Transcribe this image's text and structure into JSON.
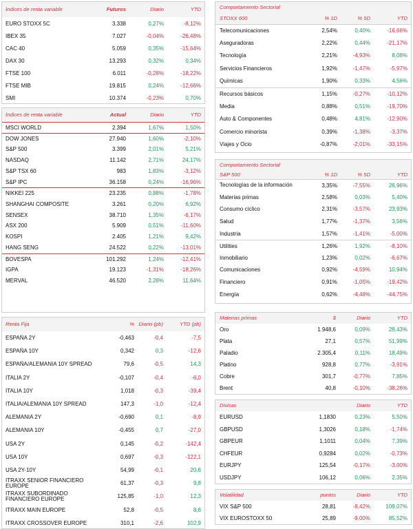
{
  "colors": {
    "accent": "#d0303f",
    "positive": "#1a9a5a",
    "negative": "#d0303f"
  },
  "futuros": {
    "headers": [
      "Índices de renta variable",
      "Futuros",
      "Diario",
      "YTD"
    ],
    "rows": [
      [
        "EURO STOXX 5C",
        "3.338",
        "0,27%",
        "-8,12%"
      ],
      [
        "IBEX 35",
        "7.027",
        "-0,04%",
        "-26,48%"
      ],
      [
        "CAC 40",
        "5.059",
        "0,35%",
        "-15,64%"
      ],
      [
        "DAX 30",
        "13.293",
        "0,32%",
        "0,34%"
      ],
      [
        "FTSE 100",
        "6.011",
        "-0,28%",
        "-18,22%"
      ],
      [
        "FTSE MIB",
        "19.815",
        "0,24%",
        "-12,66%"
      ],
      [
        "SMI",
        "10.374",
        "-0,23%",
        "0,70%"
      ]
    ]
  },
  "actual": {
    "headers": [
      "Índices de renta variable",
      "Actual",
      "Diario",
      "YTD"
    ],
    "groups": [
      [
        [
          "MSCI WORLD",
          "2.394",
          "1,67%",
          "1,50%"
        ]
      ],
      [
        [
          "DOW JONES",
          "27.940",
          "1,60%",
          "-2,10%"
        ],
        [
          "S&P 500",
          "3.399",
          "2,01%",
          "5,21%"
        ],
        [
          "NASDAQ",
          "11.142",
          "2,71%",
          "24,17%"
        ],
        [
          "S&P TSX 60",
          "983",
          "1,83%",
          "-3,12%"
        ],
        [
          "S&P IPC",
          "36.158",
          "0,24%",
          "-16,96%"
        ]
      ],
      [
        [
          "NIKKEI 225",
          "23.235",
          "0,88%",
          "-1,78%"
        ],
        [
          "SHANGHAI COMPOSITE",
          "3.261",
          "0,20%",
          "6,92%"
        ],
        [
          "SENSEX",
          "38.710",
          "1,35%",
          "-6,17%"
        ],
        [
          "ASX 200",
          "5.909",
          "0,51%",
          "-11,60%"
        ],
        [
          "KOSPI",
          "2.405",
          "1,21%",
          "9,42%"
        ],
        [
          "HANG SENG",
          "24.522",
          "0,22%",
          "-13,01%"
        ]
      ],
      [
        [
          "BOVESPA",
          "101.292",
          "1,24%",
          "-12,41%"
        ],
        [
          "IGPA",
          "19.123",
          "-1,31%",
          "-18,26%"
        ],
        [
          "MERVAL",
          "46.520",
          "2,28%",
          "11,64%"
        ]
      ]
    ]
  },
  "renta_fija": {
    "headers": [
      "Renta Fija",
      "%",
      "Diario (pb)",
      "YTD (pb)"
    ],
    "rows": [
      [
        "ESPAÑA 2Y",
        "-0,463",
        "-0,4",
        "-7,5"
      ],
      [
        "ESPAÑA 10Y",
        "0,342",
        "0,3",
        "-12,6"
      ],
      [
        "ESPAÑA/ALEMANIA 10Y SPREAD",
        "79,6",
        "-0,5",
        "14,3"
      ],
      [
        "ITALIA 2Y",
        "-0,107",
        "-0,4",
        "-6,0"
      ],
      [
        "ITALIA 10Y",
        "1,018",
        "-0,3",
        "-39,4"
      ],
      [
        "ITALIA/ALEMANIA 10Y SPREAD",
        "147,3",
        "-1,0",
        "-12,4"
      ],
      [
        "ALEMANIA 2Y",
        "-0,690",
        "0,1",
        "-8,9"
      ],
      [
        "ALEMANIA 10Y",
        "-0,455",
        "0,7",
        "-27,0"
      ],
      [
        "USA 2Y",
        "0,145",
        "-0,2",
        "-142,4"
      ],
      [
        "USA 10Y",
        "0,697",
        "-0,3",
        "-122,1"
      ],
      [
        "USA 2Y-10Y",
        "54,99",
        "-0,1",
        "20,6"
      ],
      [
        "ITRAXX SENIOR FINANCIERO EUROPE",
        "61,37",
        "-0,3",
        "9,8"
      ],
      [
        "ITRAXX SUBORDINADO FINANCIERO EUROPE",
        "125,85",
        "-1,0",
        "12,3"
      ],
      [
        "ITRAXX MAIN EUROPE",
        "52,8",
        "-0,5",
        "8,6"
      ],
      [
        "ITRAXX CROSSOVER EUROPE",
        "310,1",
        "-2,6",
        "102,9"
      ]
    ]
  },
  "sector_stoxx": {
    "title": "Comportamiento Sectorial",
    "headers": [
      "STOXX 600",
      "% 1D",
      "% 5D",
      "YTD"
    ],
    "groups": [
      [
        [
          "Telecomunicaciones",
          "2,54%",
          "0,40%",
          "-16,66%"
        ],
        [
          "Aseguradoras",
          "2,22%",
          "0,44%",
          "-21,17%"
        ],
        [
          "Tecnología",
          "2,21%",
          "-4,93%",
          "8,08%"
        ],
        [
          "Servicios Financieros",
          "1,92%",
          "-1,47%",
          "-5,97%"
        ],
        [
          "Químicas",
          "1,90%",
          "0,33%",
          "4,56%"
        ]
      ],
      [
        [
          "Recursos básicos",
          "1,15%",
          "-0,27%",
          "-10,12%"
        ],
        [
          "Media",
          "0,88%",
          "0,51%",
          "-19,70%"
        ],
        [
          "Auto & Componentes",
          "0,48%",
          "4,81%",
          "-12,90%"
        ],
        [
          "Comercio minorista",
          "0,39%",
          "-1,38%",
          "-3,37%"
        ],
        [
          "Viajes y Ocio",
          "-0,87%",
          "-2,01%",
          "-33,15%"
        ]
      ]
    ]
  },
  "sector_sp": {
    "title": "Comportamiento Sectorial",
    "headers": [
      "S&P 500",
      "% 1D",
      "% 5D",
      "YTD"
    ],
    "groups": [
      [
        [
          "Tecnologías de la información",
          "3,35%",
          "-7,55%",
          "26,96%"
        ],
        [
          "Materias primas",
          "2,58%",
          "0,03%",
          "5,40%"
        ],
        [
          "Consumo cíclico",
          "2,31%",
          "-3,57%",
          "23,93%"
        ],
        [
          "Salud",
          "1,77%",
          "-1,37%",
          "3,56%"
        ],
        [
          "Industria",
          "1,57%",
          "-1,41%",
          "-5,00%"
        ]
      ],
      [
        [
          "Utilities",
          "1,26%",
          "1,92%",
          "-8,10%"
        ],
        [
          "Inmobiliario",
          "1,23%",
          "0,02%",
          "-6,67%"
        ],
        [
          "Comunicaciones",
          "0,92%",
          "-4,59%",
          "10,94%"
        ],
        [
          "Financiero",
          "0,91%",
          "-1,05%",
          "-19,42%"
        ],
        [
          "Energía",
          "0,62%",
          "-4,48%",
          "-44,75%"
        ]
      ]
    ]
  },
  "materias": {
    "headers": [
      "Materias primas",
      "$",
      "Diario",
      "YTD"
    ],
    "rows": [
      [
        "Oro",
        "1.948,6",
        "0,09%",
        "28,43%"
      ],
      [
        "Plata",
        "27,1",
        "0,57%",
        "51,99%"
      ],
      [
        "Paladio",
        "2.305,4",
        "0,11%",
        "18,49%"
      ],
      [
        "Platino",
        "928,8",
        "0,77%",
        "-3,91%"
      ],
      [
        "Cobre",
        "301,7",
        "-0,77%",
        "7,85%"
      ],
      [
        "Brent",
        "40,8",
        "-0,10%",
        "-38,26%"
      ]
    ]
  },
  "divisas": {
    "headers": [
      "Divisas",
      "",
      "Diario",
      "YTD"
    ],
    "rows": [
      [
        "EURUSD",
        "1,1830",
        "0,23%",
        "5,50%"
      ],
      [
        "GBPUSD",
        "1,3026",
        "0,18%",
        "-1,74%"
      ],
      [
        "GBPEUR",
        "1,1011",
        "0,04%",
        "7,39%"
      ],
      [
        "CHFEUR",
        "0,9284",
        "0,02%",
        "-0,73%"
      ],
      [
        "EURJPY",
        "125,54",
        "-0,17%",
        "-3,00%"
      ],
      [
        "USDJPY",
        "106,12",
        "0,06%",
        "2,35%"
      ]
    ]
  },
  "volatilidad": {
    "headers": [
      "Volatilidad",
      "puntos",
      "Diario",
      "YTD"
    ],
    "rows": [
      [
        "VIX S&P 500",
        "28,81",
        "-8,42%",
        "109,07%"
      ],
      [
        "VIX EUROSTOXX 50",
        "25,89",
        "-9,00%",
        "85,52%"
      ]
    ]
  }
}
